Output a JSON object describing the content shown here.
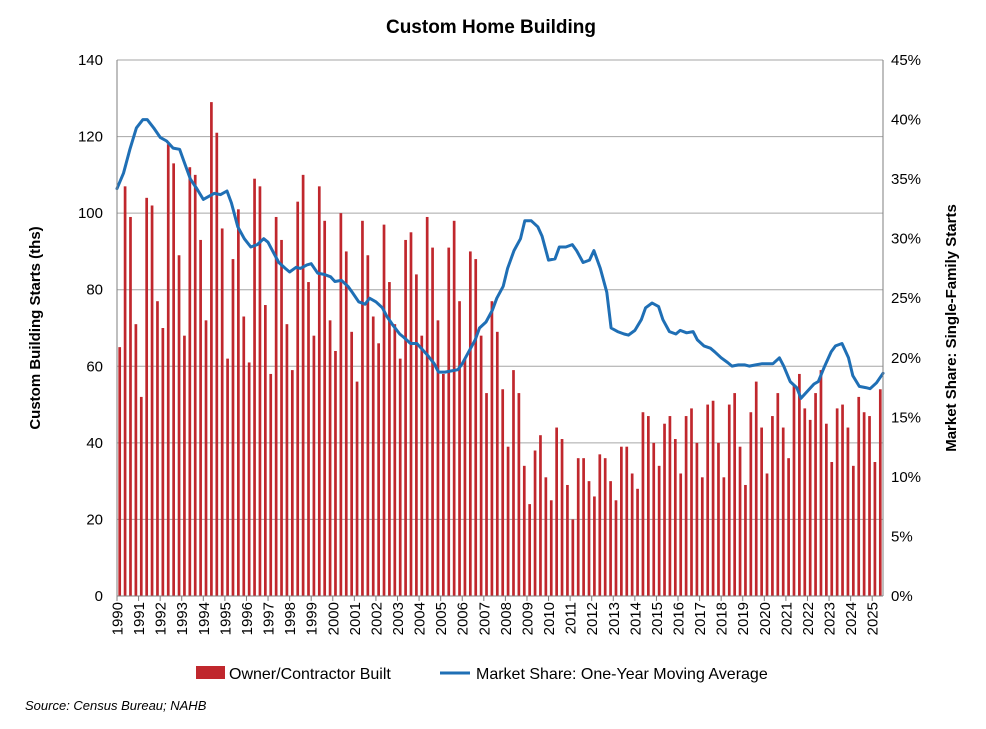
{
  "chart_data": {
    "type": "bar",
    "title": "Custom Home Building",
    "ylabel": "Custom Building Starts (ths)",
    "y2label": "Market Share: Single-Family Starts",
    "ylim": [
      0,
      140
    ],
    "y2lim": [
      0,
      45
    ],
    "yticks": [
      "0",
      "20",
      "40",
      "60",
      "80",
      "100",
      "120",
      "140"
    ],
    "y2ticks": [
      "0%",
      "5%",
      "10%",
      "15%",
      "20%",
      "25%",
      "30%",
      "35%",
      "40%",
      "45%"
    ],
    "xlim": [
      1990.0,
      2025.5
    ],
    "years": [
      "1990",
      "1991",
      "1992",
      "1993",
      "1994",
      "1995",
      "1996",
      "1997",
      "1998",
      "1999",
      "2000",
      "2001",
      "2002",
      "2003",
      "2004",
      "2005",
      "2006",
      "2007",
      "2008",
      "2009",
      "2010",
      "2011",
      "2012",
      "2013",
      "2014",
      "2015",
      "2016",
      "2017",
      "2018",
      "2019",
      "2020",
      "2021",
      "2022",
      "2023",
      "2024",
      "2025"
    ],
    "grid": true,
    "legend_position": "bottom",
    "colors": {
      "bars": "#c0272d",
      "line": "#1f6fb5",
      "grid": "#a6a6a6"
    },
    "series": [
      {
        "name": "Owner/Contractor Built",
        "axis": "left",
        "kind": "bar",
        "frequency": "quarterly",
        "start": "1990 Q1",
        "values": [
          65,
          107,
          99,
          71,
          52,
          104,
          102,
          77,
          70,
          118,
          113,
          89,
          68,
          112,
          110,
          93,
          72,
          129,
          121,
          96,
          62,
          88,
          101,
          73,
          61,
          109,
          107,
          76,
          58,
          99,
          93,
          71,
          59,
          103,
          110,
          82,
          68,
          107,
          98,
          72,
          64,
          100,
          90,
          69,
          56,
          98,
          89,
          73,
          66,
          97,
          82,
          71,
          62,
          93,
          95,
          84,
          68,
          99,
          91,
          72,
          58,
          91,
          98,
          77,
          62,
          90,
          88,
          68,
          53,
          77,
          69,
          54,
          39,
          59,
          53,
          34,
          24,
          38,
          42,
          31,
          25,
          44,
          41,
          29,
          20,
          36,
          36,
          30,
          26,
          37,
          36,
          30,
          25,
          39,
          39,
          32,
          28,
          48,
          47,
          40,
          34,
          45,
          47,
          41,
          32,
          47,
          49,
          40,
          31,
          50,
          51,
          40,
          31,
          50,
          53,
          39,
          29,
          48,
          56,
          44,
          32,
          47,
          53,
          44,
          36,
          55,
          58,
          49,
          46,
          53,
          59,
          45,
          35,
          49,
          50,
          44,
          34,
          52,
          48,
          47,
          35,
          54
        ]
      },
      {
        "name": "Market Share: One-Year Moving Average",
        "axis": "right",
        "kind": "line",
        "points": [
          [
            1990.0,
            34.2
          ],
          [
            1990.3,
            35.5
          ],
          [
            1990.6,
            37.5
          ],
          [
            1990.9,
            39.3
          ],
          [
            1991.2,
            40.0
          ],
          [
            1991.4,
            40.0
          ],
          [
            1991.7,
            39.3
          ],
          [
            1992.0,
            38.5
          ],
          [
            1992.3,
            38.2
          ],
          [
            1992.6,
            37.6
          ],
          [
            1992.9,
            37.5
          ],
          [
            1993.1,
            36.5
          ],
          [
            1993.4,
            35.0
          ],
          [
            1993.7,
            34.2
          ],
          [
            1994.0,
            33.3
          ],
          [
            1994.3,
            33.6
          ],
          [
            1994.5,
            33.8
          ],
          [
            1994.8,
            33.7
          ],
          [
            1995.1,
            34.0
          ],
          [
            1995.3,
            33.0
          ],
          [
            1995.6,
            31.0
          ],
          [
            1995.9,
            30.0
          ],
          [
            1996.2,
            29.3
          ],
          [
            1996.5,
            29.5
          ],
          [
            1996.8,
            30.0
          ],
          [
            1997.0,
            29.7
          ],
          [
            1997.2,
            29.0
          ],
          [
            1997.5,
            28.0
          ],
          [
            1997.8,
            27.5
          ],
          [
            1998.0,
            27.2
          ],
          [
            1998.3,
            27.6
          ],
          [
            1998.5,
            27.5
          ],
          [
            1998.8,
            27.8
          ],
          [
            1999.0,
            27.9
          ],
          [
            1999.3,
            27.1
          ],
          [
            1999.6,
            27.0
          ],
          [
            1999.9,
            26.8
          ],
          [
            2000.1,
            26.4
          ],
          [
            2000.4,
            26.5
          ],
          [
            2000.7,
            26.0
          ],
          [
            2000.9,
            25.5
          ],
          [
            2001.2,
            24.7
          ],
          [
            2001.5,
            24.5
          ],
          [
            2001.7,
            25.0
          ],
          [
            2002.0,
            24.7
          ],
          [
            2002.3,
            24.2
          ],
          [
            2002.5,
            23.5
          ],
          [
            2002.8,
            22.7
          ],
          [
            2003.1,
            22.0
          ],
          [
            2003.3,
            21.7
          ],
          [
            2003.6,
            21.2
          ],
          [
            2003.9,
            21.2
          ],
          [
            2004.1,
            20.8
          ],
          [
            2004.4,
            20.2
          ],
          [
            2004.7,
            19.5
          ],
          [
            2004.9,
            18.8
          ],
          [
            2005.2,
            18.8
          ],
          [
            2005.5,
            18.9
          ],
          [
            2005.8,
            19.0
          ],
          [
            2006.0,
            19.5
          ],
          [
            2006.3,
            20.5
          ],
          [
            2006.6,
            21.5
          ],
          [
            2006.8,
            22.5
          ],
          [
            2007.1,
            23.0
          ],
          [
            2007.4,
            24.0
          ],
          [
            2007.6,
            25.0
          ],
          [
            2007.9,
            26.0
          ],
          [
            2008.1,
            27.5
          ],
          [
            2008.4,
            29.0
          ],
          [
            2008.7,
            30.0
          ],
          [
            2008.9,
            31.5
          ],
          [
            2009.2,
            31.5
          ],
          [
            2009.5,
            31.0
          ],
          [
            2009.7,
            30.2
          ],
          [
            2010.0,
            28.2
          ],
          [
            2010.3,
            28.3
          ],
          [
            2010.5,
            29.3
          ],
          [
            2010.8,
            29.3
          ],
          [
            2011.1,
            29.5
          ],
          [
            2011.3,
            29.0
          ],
          [
            2011.6,
            28.0
          ],
          [
            2011.9,
            28.2
          ],
          [
            2012.1,
            29.0
          ],
          [
            2012.4,
            27.5
          ],
          [
            2012.7,
            25.5
          ],
          [
            2012.9,
            22.5
          ],
          [
            2013.2,
            22.2
          ],
          [
            2013.5,
            22.0
          ],
          [
            2013.7,
            21.9
          ],
          [
            2014.0,
            22.3
          ],
          [
            2014.3,
            23.2
          ],
          [
            2014.5,
            24.2
          ],
          [
            2014.8,
            24.6
          ],
          [
            2015.1,
            24.3
          ],
          [
            2015.3,
            23.2
          ],
          [
            2015.6,
            22.2
          ],
          [
            2015.9,
            22.0
          ],
          [
            2016.1,
            22.3
          ],
          [
            2016.4,
            22.1
          ],
          [
            2016.7,
            22.2
          ],
          [
            2016.9,
            21.5
          ],
          [
            2017.2,
            21.0
          ],
          [
            2017.5,
            20.8
          ],
          [
            2017.7,
            20.5
          ],
          [
            2018.0,
            20.0
          ],
          [
            2018.3,
            19.6
          ],
          [
            2018.5,
            19.3
          ],
          [
            2018.8,
            19.4
          ],
          [
            2019.1,
            19.4
          ],
          [
            2019.3,
            19.3
          ],
          [
            2019.6,
            19.4
          ],
          [
            2019.9,
            19.5
          ],
          [
            2020.1,
            19.5
          ],
          [
            2020.4,
            19.5
          ],
          [
            2020.7,
            20.0
          ],
          [
            2020.9,
            19.3
          ],
          [
            2021.2,
            18.0
          ],
          [
            2021.5,
            17.5
          ],
          [
            2021.7,
            16.6
          ],
          [
            2022.0,
            17.2
          ],
          [
            2022.3,
            17.8
          ],
          [
            2022.5,
            18.0
          ],
          [
            2022.8,
            19.3
          ],
          [
            2023.1,
            20.5
          ],
          [
            2023.3,
            21.0
          ],
          [
            2023.6,
            21.2
          ],
          [
            2023.9,
            20.0
          ],
          [
            2024.1,
            18.5
          ],
          [
            2024.4,
            17.6
          ],
          [
            2024.7,
            17.5
          ],
          [
            2024.9,
            17.4
          ],
          [
            2025.2,
            17.9
          ],
          [
            2025.5,
            18.7
          ]
        ]
      }
    ],
    "legend": [
      "Owner/Contractor Built",
      "Market Share: One-Year Moving Average"
    ]
  },
  "source": "Source: Census Bureau; NAHB"
}
